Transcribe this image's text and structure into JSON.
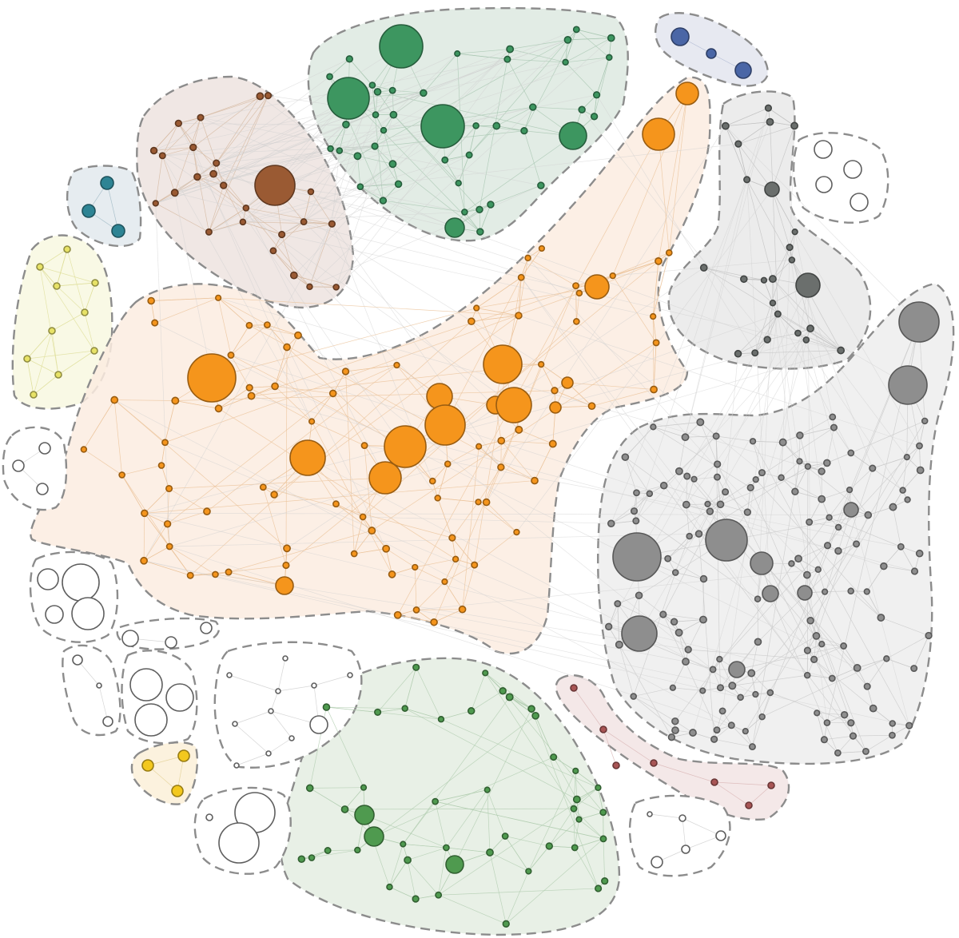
{
  "diagram": {
    "type": "network-cluster-map",
    "clusters": [
      {
        "id": "green-top",
        "fill": "#dde9e0",
        "node_color": "#3d9660",
        "edge_color": "#a9c7b2",
        "nodes": 46,
        "large_nodes": 5
      },
      {
        "id": "blue-small",
        "fill": "#e3e5ef",
        "node_color": "#4a66a6",
        "edge_color": "#a9b4d0",
        "nodes": 3,
        "large_nodes": 0
      },
      {
        "id": "brown",
        "fill": "#ede3df",
        "node_color": "#9a5a33",
        "edge_color": "#d5b89f",
        "nodes": 25,
        "large_nodes": 1
      },
      {
        "id": "teal-small",
        "fill": "#e2e9ed",
        "node_color": "#2e8494",
        "edge_color": "#9db8c3",
        "nodes": 3,
        "large_nodes": 0
      },
      {
        "id": "yellow",
        "fill": "#f8f8e1",
        "node_color": "#e7e267",
        "edge_color": "#dede9a",
        "nodes": 8,
        "large_nodes": 0
      },
      {
        "id": "orange",
        "fill": "#fcece1",
        "node_color": "#f5951c",
        "edge_color": "#ebc39a",
        "nodes": 96,
        "large_nodes": 12
      },
      {
        "id": "gray-upper",
        "fill": "#e9e9e9",
        "node_color": "#6b6f6d",
        "edge_color": "#c2c2c2",
        "nodes": 24,
        "large_nodes": 2
      },
      {
        "id": "gray-large",
        "fill": "#ededed",
        "node_color": "#8e8e8e",
        "edge_color": "#c9c9c9",
        "nodes": 140,
        "large_nodes": 10
      },
      {
        "id": "red-small",
        "fill": "#f2e4e4",
        "node_color": "#a85555",
        "edge_color": "#d8b3b3",
        "nodes": 7,
        "large_nodes": 0
      },
      {
        "id": "green-bottom",
        "fill": "#e4ede2",
        "node_color": "#4f9a4f",
        "edge_color": "#b2cdb0",
        "nodes": 45,
        "large_nodes": 3
      },
      {
        "id": "gold-small",
        "fill": "#fbf0d8",
        "node_color": "#f3c81e",
        "edge_color": "#e2cf94",
        "nodes": 3,
        "large_nodes": 0
      },
      {
        "id": "white-groups",
        "fill": "#ffffff",
        "node_color": "#ffffff",
        "edge_color": "#d6d6d6",
        "groups": 8
      }
    ]
  }
}
